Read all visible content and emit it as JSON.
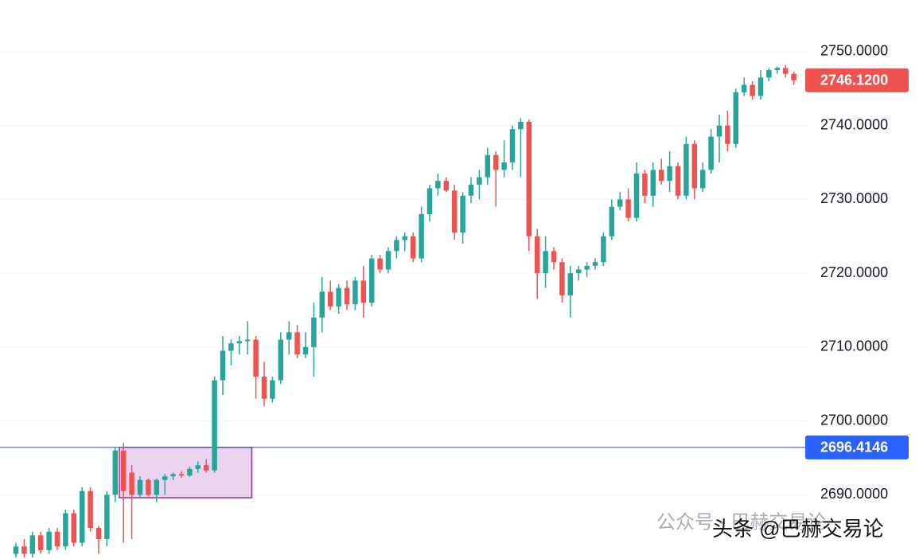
{
  "chart_data": {
    "type": "candlestick",
    "up_color": "#26a69a",
    "down_color": "#ef5350",
    "ylim": [
      2681.3,
      2757.0
    ],
    "yticks": [
      {
        "value": 2690,
        "label": "2690.0000"
      },
      {
        "value": 2700,
        "label": "2700.0000"
      },
      {
        "value": 2710,
        "label": "2710.0000"
      },
      {
        "value": 2720,
        "label": "2720.0000"
      },
      {
        "value": 2730,
        "label": "2730.0000"
      },
      {
        "value": 2740,
        "label": "2740.0000"
      },
      {
        "value": 2750,
        "label": "2750.0000"
      }
    ],
    "grid": true,
    "last_price": {
      "value": 2746.12,
      "label": "2746.1200",
      "color": "#ef5350"
    },
    "level_line": {
      "value": 2696.4146,
      "label": "2696.4146",
      "color": "#2962ff"
    },
    "range_box": {
      "start": 13,
      "end": 28,
      "high": 2696.4146,
      "low": 2689.6,
      "color": "#9c27b0"
    },
    "candles": [
      [
        2682,
        2683.5,
        2681.5,
        2683
      ],
      [
        2683,
        2684,
        2681.5,
        2682
      ],
      [
        2682,
        2685,
        2681.5,
        2684.5
      ],
      [
        2684.5,
        2685,
        2682,
        2682.5
      ],
      [
        2682.5,
        2685.5,
        2682,
        2685
      ],
      [
        2685,
        2685.5,
        2682.5,
        2683
      ],
      [
        2683,
        2688,
        2682.5,
        2687.5
      ],
      [
        2687.5,
        2688,
        2683,
        2683.5
      ],
      [
        2683.5,
        2691,
        2683,
        2690.5
      ],
      [
        2690.5,
        2691,
        2685,
        2685.5
      ],
      [
        2685.5,
        2685.8,
        2682,
        2684
      ],
      [
        2684,
        2690.5,
        2683,
        2690
      ],
      [
        2690,
        2696.5,
        2689,
        2696
      ],
      [
        2696,
        2697,
        2683.5,
        2690.5
      ],
      [
        2693,
        2694,
        2684,
        2690
      ],
      [
        2690,
        2692.5,
        2689.5,
        2692
      ],
      [
        2692,
        2692.2,
        2689.8,
        2690
      ],
      [
        2690,
        2692.2,
        2689,
        2692
      ],
      [
        2692,
        2692.8,
        2690,
        2692.5
      ],
      [
        2692.5,
        2693,
        2692,
        2692.8
      ],
      [
        2692.8,
        2693.2,
        2692.3,
        2692.6
      ],
      [
        2692.6,
        2693.8,
        2692.4,
        2693.5
      ],
      [
        2693.5,
        2694.5,
        2693,
        2694
      ],
      [
        2694,
        2694.8,
        2693,
        2693.3
      ],
      [
        2693.3,
        2706,
        2693,
        2705.5
      ],
      [
        2705.5,
        2711.5,
        2703.5,
        2709.5
      ],
      [
        2709.5,
        2711,
        2707.5,
        2710.5
      ],
      [
        2710.5,
        2711.5,
        2709,
        2710.8
      ],
      [
        2710.8,
        2713.5,
        2709,
        2711
      ],
      [
        2711,
        2711.5,
        2703,
        2706
      ],
      [
        2706,
        2708,
        2702,
        2703
      ],
      [
        2703,
        2706,
        2702.5,
        2705.5
      ],
      [
        2705.5,
        2712,
        2705,
        2711
      ],
      [
        2711,
        2713.5,
        2709,
        2712
      ],
      [
        2712,
        2713,
        2708.5,
        2709
      ],
      [
        2709,
        2712,
        2708.5,
        2710
      ],
      [
        2710,
        2716,
        2706,
        2714
      ],
      [
        2714,
        2719.5,
        2712,
        2717.5
      ],
      [
        2717.5,
        2719,
        2715,
        2715.5
      ],
      [
        2715.5,
        2718.5,
        2714.5,
        2718
      ],
      [
        2718,
        2719,
        2715,
        2715.8
      ],
      [
        2715.8,
        2719.5,
        2715,
        2719
      ],
      [
        2719,
        2721,
        2714,
        2716
      ],
      [
        2716,
        2722.5,
        2715.5,
        2722
      ],
      [
        2722,
        2722.5,
        2720,
        2720.5
      ],
      [
        2720.5,
        2723.5,
        2720,
        2723
      ],
      [
        2723,
        2725,
        2722,
        2724.5
      ],
      [
        2724.5,
        2725.5,
        2723,
        2725
      ],
      [
        2725,
        2725.5,
        2721.5,
        2722
      ],
      [
        2722,
        2729,
        2721.5,
        2728
      ],
      [
        2728,
        2732,
        2727,
        2731.5
      ],
      [
        2731.5,
        2733.5,
        2730.5,
        2732.5
      ],
      [
        2732.5,
        2733,
        2731,
        2731.2
      ],
      [
        2731.2,
        2732,
        2724.5,
        2725.5
      ],
      [
        2725.5,
        2731,
        2724,
        2730.5
      ],
      [
        2730.5,
        2733,
        2729.5,
        2732
      ],
      [
        2732,
        2734,
        2730,
        2733
      ],
      [
        2733,
        2737,
        2732,
        2736
      ],
      [
        2736,
        2736.5,
        2729,
        2734
      ],
      [
        2734,
        2738,
        2733,
        2735
      ],
      [
        2735,
        2740,
        2734,
        2739.5
      ],
      [
        2739.5,
        2741,
        2733,
        2740.5
      ],
      [
        2740.5,
        2740.8,
        2723,
        2725
      ],
      [
        2725,
        2726,
        2716.5,
        2720
      ],
      [
        2720,
        2725,
        2718,
        2723
      ],
      [
        2723,
        2723.5,
        2720.5,
        2721.5
      ],
      [
        2721.5,
        2722,
        2716,
        2717
      ],
      [
        2717,
        2721,
        2714,
        2720
      ],
      [
        2720,
        2721,
        2719,
        2720.5
      ],
      [
        2720.5,
        2721.5,
        2719.5,
        2721
      ],
      [
        2721,
        2722,
        2720.5,
        2721.5
      ],
      [
        2721.5,
        2725.5,
        2721,
        2725
      ],
      [
        2725,
        2730,
        2724.5,
        2729
      ],
      [
        2729,
        2731,
        2728.5,
        2730
      ],
      [
        2730,
        2731.5,
        2727,
        2727.5
      ],
      [
        2727.5,
        2735,
        2727,
        2733.5
      ],
      [
        2733.5,
        2734,
        2729.5,
        2730.5
      ],
      [
        2730.5,
        2735,
        2729,
        2734
      ],
      [
        2734,
        2735.5,
        2732,
        2732.5
      ],
      [
        2732.5,
        2736.5,
        2731,
        2734.5
      ],
      [
        2734.5,
        2735,
        2730,
        2730.5
      ],
      [
        2730.5,
        2738.5,
        2730,
        2737.5
      ],
      [
        2737.5,
        2738,
        2730,
        2731.5
      ],
      [
        2731.5,
        2735,
        2731,
        2734
      ],
      [
        2734,
        2739.5,
        2733.5,
        2738.5
      ],
      [
        2738.5,
        2741.5,
        2735,
        2740
      ],
      [
        2740,
        2742,
        2736.5,
        2737.5
      ],
      [
        2737.5,
        2745,
        2737,
        2744.5
      ],
      [
        2744.5,
        2746.5,
        2744,
        2745.5
      ],
      [
        2745.5,
        2746,
        2743.5,
        2744
      ],
      [
        2744,
        2747.5,
        2743.5,
        2746.5
      ],
      [
        2746.5,
        2747.8,
        2746,
        2747.5
      ],
      [
        2747.5,
        2748,
        2747,
        2747.8
      ],
      [
        2747.8,
        2748.2,
        2746.5,
        2747
      ],
      [
        2747,
        2747.3,
        2745.5,
        2746.12
      ]
    ],
    "watermarks": [
      "公众号 · 巴赫交易论",
      "头条 @巴赫交易论"
    ]
  }
}
